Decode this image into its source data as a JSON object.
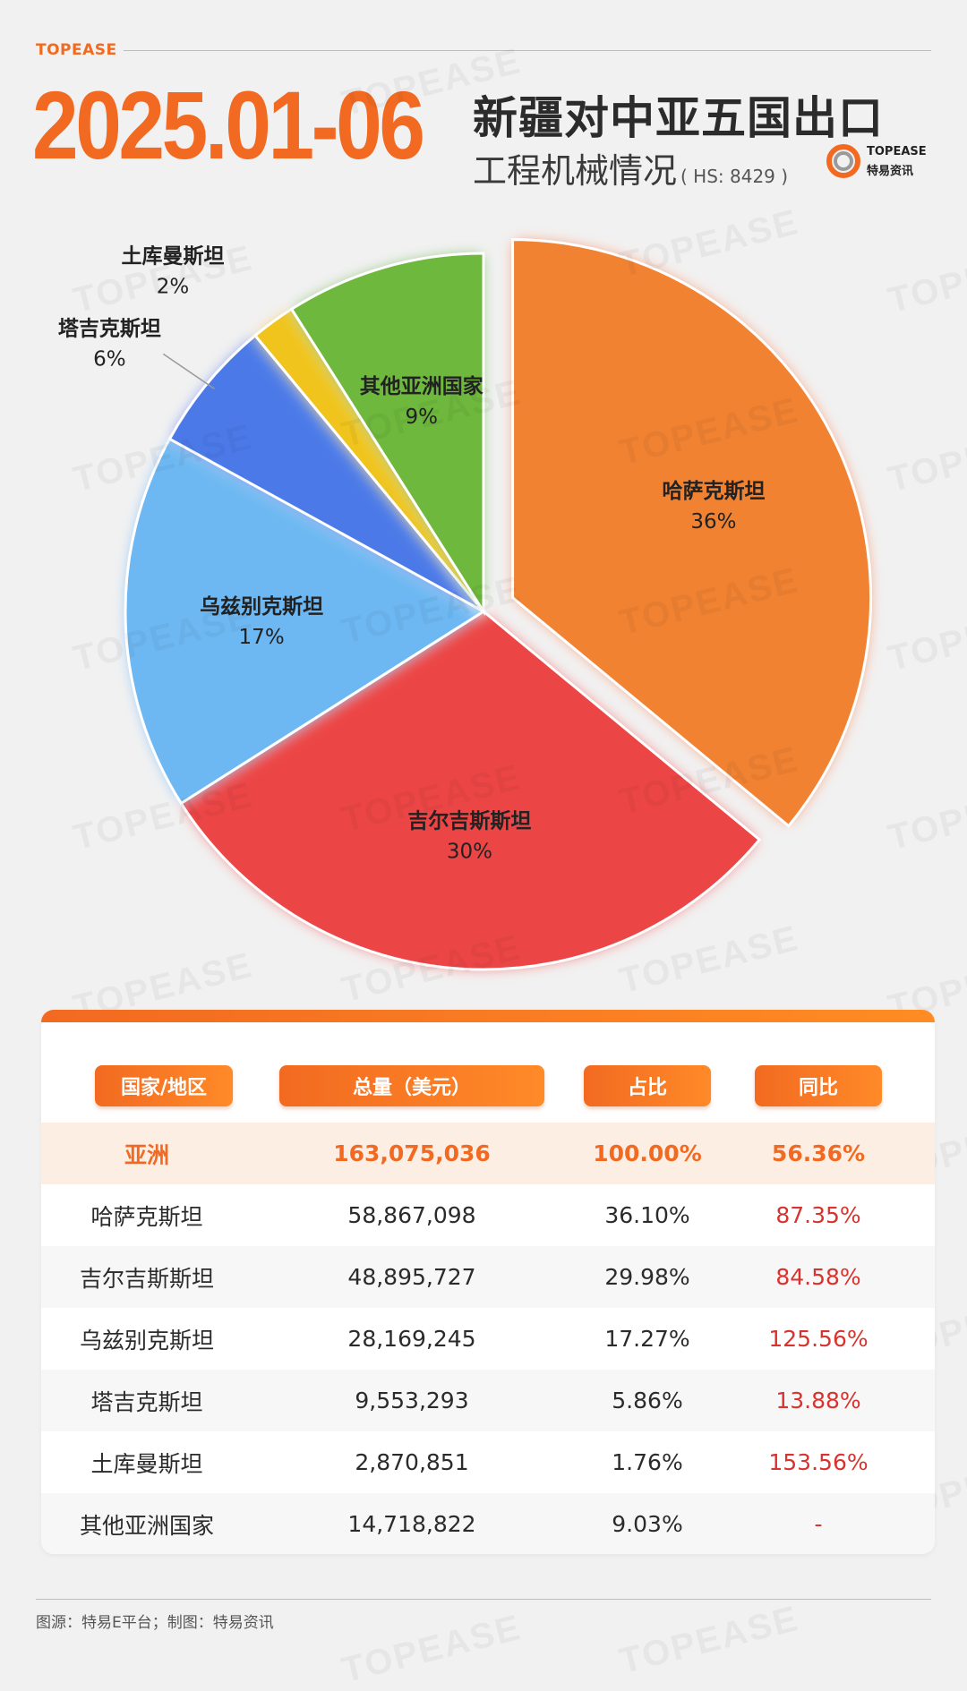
{
  "brand": "TOPEASE",
  "headline": "2025.01-06",
  "title_main": "新疆对中亚五国出口",
  "title_sub": "工程机械情况",
  "hs_code": "( HS: 8429 )",
  "logo": {
    "name": "TOPEASE",
    "subname": "特易资讯"
  },
  "watermark": "TOPEASE",
  "colors": {
    "accent": "#f26a21",
    "kazakhstan": "#f08233",
    "kyrgyzstan": "#ec4444",
    "uzbekistan": "#6db8f2",
    "tajikistan": "#4b7ae8",
    "turkmenistan": "#f0c41f",
    "other": "#6eb83c",
    "positive": "#d8332f"
  },
  "chart_data": {
    "type": "pie",
    "title": "",
    "slices": [
      {
        "label": "哈萨克斯坦",
        "value": 36,
        "display": "36%",
        "color": "#f08233",
        "exploded": true
      },
      {
        "label": "吉尔吉斯斯坦",
        "value": 30,
        "display": "30%",
        "color": "#ec4444"
      },
      {
        "label": "乌兹别克斯坦",
        "value": 17,
        "display": "17%",
        "color": "#6db8f2"
      },
      {
        "label": "塔吉克斯坦",
        "value": 6,
        "display": "6%",
        "color": "#4b7ae8"
      },
      {
        "label": "土库曼斯坦",
        "value": 2,
        "display": "2%",
        "color": "#f0c41f"
      },
      {
        "label": "其他亚洲国家",
        "value": 9,
        "display": "9%",
        "color": "#6eb83c"
      }
    ]
  },
  "table": {
    "headers": [
      "国家/地区",
      "总量（美元）",
      "占比",
      "同比"
    ],
    "rows": [
      {
        "region": "亚洲",
        "total": "163,075,036",
        "share": "100.00%",
        "yoy": "56.36%"
      },
      {
        "region": "哈萨克斯坦",
        "total": "58,867,098",
        "share": "36.10%",
        "yoy": "87.35%"
      },
      {
        "region": "吉尔吉斯斯坦",
        "total": "48,895,727",
        "share": "29.98%",
        "yoy": "84.58%"
      },
      {
        "region": "乌兹别克斯坦",
        "total": "28,169,245",
        "share": "17.27%",
        "yoy": "125.56%"
      },
      {
        "region": "塔吉克斯坦",
        "total": "9,553,293",
        "share": "5.86%",
        "yoy": "13.88%"
      },
      {
        "region": "土库曼斯坦",
        "total": "2,870,851",
        "share": "1.76%",
        "yoy": "153.56%"
      },
      {
        "region": "其他亚洲国家",
        "total": "14,718,822",
        "share": "9.03%",
        "yoy": "-"
      }
    ]
  },
  "footer": "图源：特易E平台；制图：特易资讯"
}
